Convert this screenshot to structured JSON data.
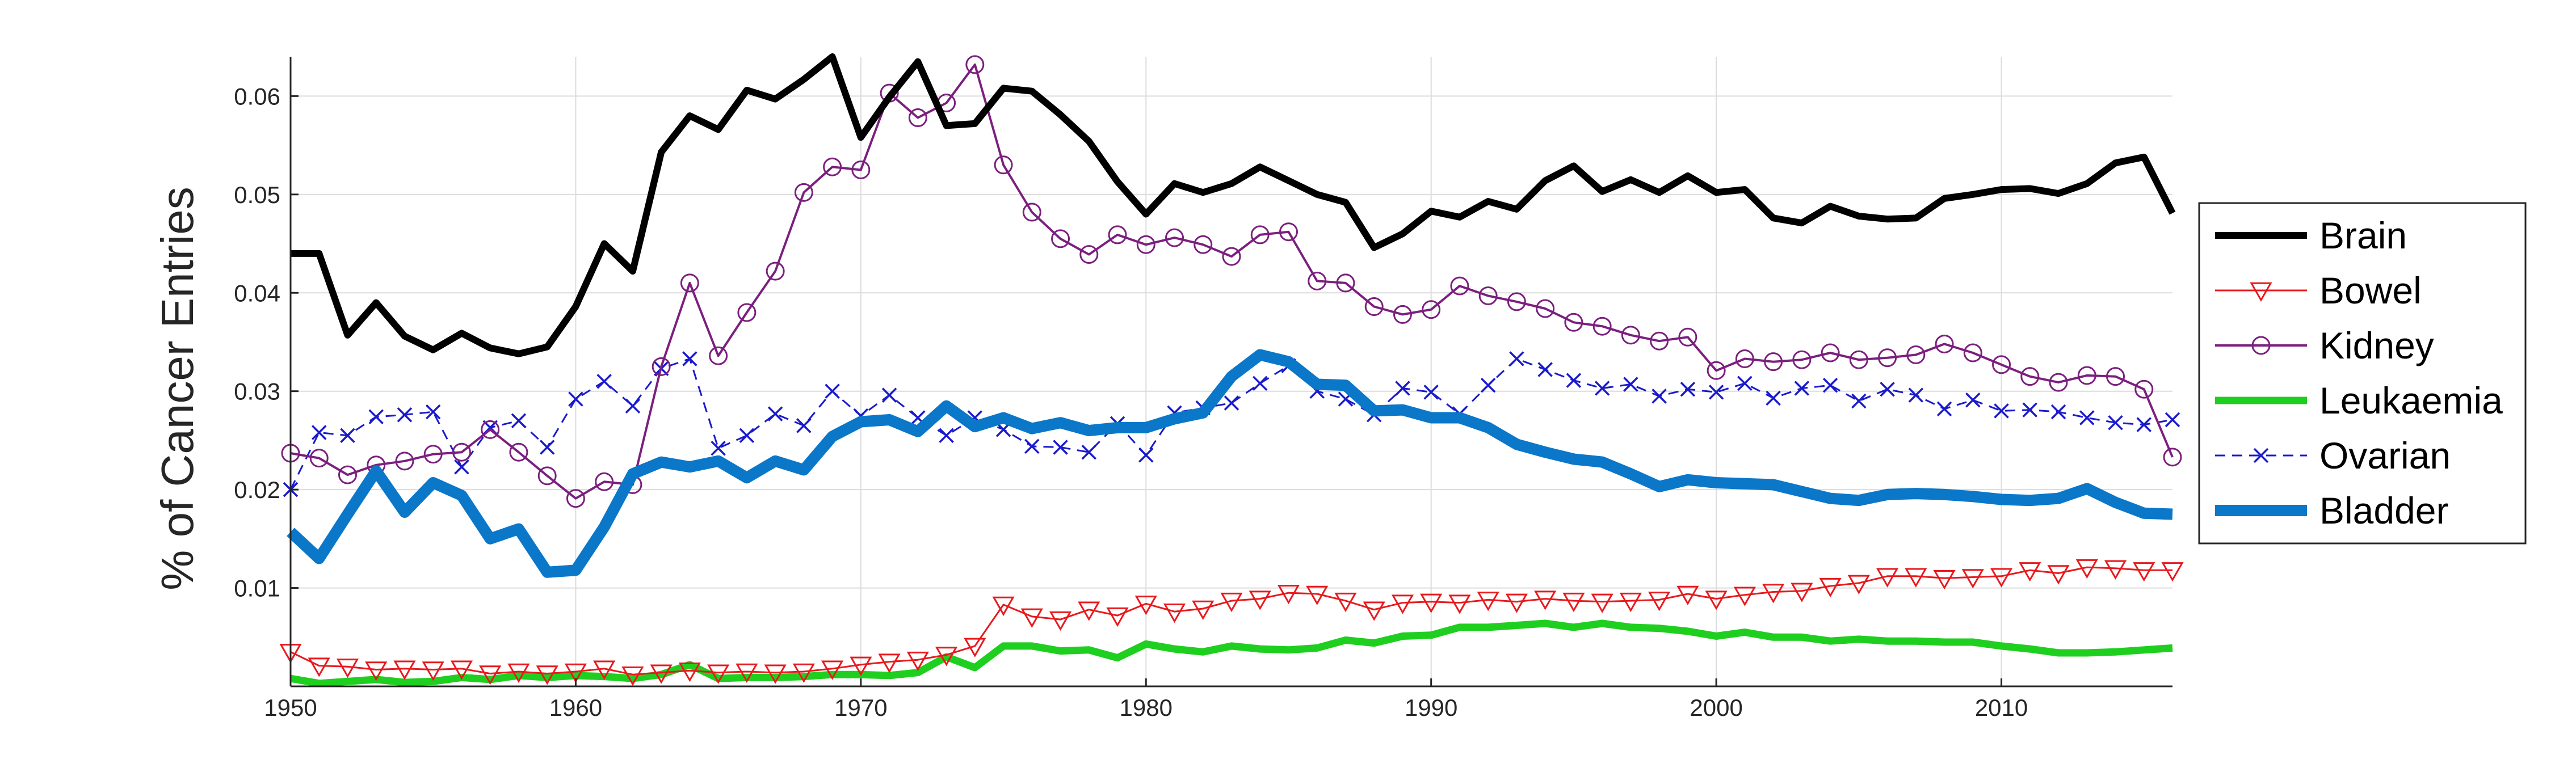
{
  "chart_data": {
    "type": "line",
    "title": "",
    "xlabel": "",
    "ylabel": "% of Cancer Entries",
    "xlim": [
      1950,
      2016
    ],
    "ylim": [
      0,
      0.064
    ],
    "xticks": [
      1950,
      1960,
      1970,
      1980,
      1990,
      2000,
      2010
    ],
    "xtick_labels": [
      "1950",
      "1960",
      "1970",
      "1980",
      "1990",
      "2000",
      "2010"
    ],
    "yticks": [
      0.01,
      0.02,
      0.03,
      0.04,
      0.05,
      0.06
    ],
    "ytick_labels": [
      "0.01",
      "0.02",
      "0.03",
      "0.04",
      "0.05",
      "0.06"
    ],
    "grid": true,
    "legend_position": "right",
    "x": [
      1950,
      1951,
      1952,
      1953,
      1954,
      1955,
      1956,
      1957,
      1958,
      1959,
      1960,
      1961,
      1962,
      1963,
      1964,
      1965,
      1966,
      1967,
      1968,
      1969,
      1970,
      1971,
      1972,
      1973,
      1974,
      1975,
      1976,
      1977,
      1978,
      1979,
      1980,
      1981,
      1982,
      1983,
      1984,
      1985,
      1986,
      1987,
      1988,
      1989,
      1990,
      1991,
      1992,
      1993,
      1994,
      1995,
      1996,
      1997,
      1998,
      1999,
      2000,
      2001,
      2002,
      2003,
      2004,
      2005,
      2006,
      2007,
      2008,
      2009,
      2010,
      2011,
      2012,
      2013,
      2014,
      2015,
      2016
    ],
    "series": [
      {
        "name": "Brain",
        "color": "#000000",
        "style": "solid",
        "marker": "none",
        "width": 12,
        "values": [
          0.044,
          0.044,
          0.0357,
          0.039,
          0.0356,
          0.0342,
          0.0359,
          0.0344,
          0.0338,
          0.0345,
          0.0386,
          0.045,
          0.0422,
          0.0543,
          0.058,
          0.0566,
          0.0606,
          0.0597,
          0.0617,
          0.064,
          0.0558,
          0.0599,
          0.0635,
          0.057,
          0.0572,
          0.0608,
          0.0605,
          0.0581,
          0.0554,
          0.0513,
          0.048,
          0.0511,
          0.0502,
          0.0511,
          0.0528,
          0.0514,
          0.05,
          0.0492,
          0.0446,
          0.046,
          0.0483,
          0.0477,
          0.0493,
          0.0485,
          0.0514,
          0.0529,
          0.0503,
          0.0515,
          0.0502,
          0.0519,
          0.0502,
          0.0505,
          0.0476,
          0.0471,
          0.0488,
          0.0478,
          0.0475,
          0.0476,
          0.0496,
          0.05,
          0.0505,
          0.0506,
          0.0501,
          0.0511,
          0.0532,
          0.0538,
          0.0481
        ]
      },
      {
        "name": "Bowel",
        "color": "#e8191d",
        "style": "solid",
        "marker": "triangle-down",
        "width": 3,
        "values": [
          0.0035,
          0.0021,
          0.002,
          0.0017,
          0.0018,
          0.0017,
          0.0018,
          0.0013,
          0.0015,
          0.0013,
          0.0015,
          0.0018,
          0.0012,
          0.0014,
          0.0016,
          0.0014,
          0.0015,
          0.0014,
          0.0015,
          0.0018,
          0.0022,
          0.0025,
          0.0027,
          0.0032,
          0.0041,
          0.0083,
          0.0071,
          0.0068,
          0.0078,
          0.0072,
          0.0084,
          0.0076,
          0.0079,
          0.0087,
          0.0089,
          0.0095,
          0.0094,
          0.0087,
          0.0078,
          0.0085,
          0.0086,
          0.0085,
          0.0088,
          0.0086,
          0.0089,
          0.0087,
          0.0086,
          0.0087,
          0.0088,
          0.0094,
          0.0089,
          0.0093,
          0.0096,
          0.0097,
          0.0102,
          0.0105,
          0.0112,
          0.0112,
          0.011,
          0.0111,
          0.0112,
          0.0118,
          0.0115,
          0.0121,
          0.012,
          0.0118,
          0.0118
        ]
      },
      {
        "name": "Kidney",
        "color": "#7b1f7e",
        "style": "solid",
        "marker": "circle",
        "width": 4,
        "values": [
          0.0237,
          0.0232,
          0.0215,
          0.0225,
          0.0229,
          0.0236,
          0.0238,
          0.0261,
          0.0238,
          0.0214,
          0.0191,
          0.0208,
          0.0205,
          0.0325,
          0.041,
          0.0336,
          0.038,
          0.0422,
          0.0502,
          0.0528,
          0.0525,
          0.0603,
          0.0578,
          0.0593,
          0.0632,
          0.053,
          0.0482,
          0.0455,
          0.0439,
          0.0459,
          0.0449,
          0.0456,
          0.0449,
          0.0437,
          0.0459,
          0.0462,
          0.0412,
          0.041,
          0.0386,
          0.0378,
          0.0383,
          0.0407,
          0.0397,
          0.0391,
          0.0384,
          0.037,
          0.0366,
          0.0357,
          0.0351,
          0.0355,
          0.0321,
          0.0333,
          0.033,
          0.0332,
          0.0339,
          0.0332,
          0.0334,
          0.0337,
          0.0348,
          0.0339,
          0.0327,
          0.0315,
          0.0309,
          0.0316,
          0.0315,
          0.0302,
          0.0233
        ]
      },
      {
        "name": "Leukaemia",
        "color": "#1fcf1f",
        "style": "solid",
        "marker": "none",
        "width": 13,
        "values": [
          0.0008,
          0.0003,
          0.0005,
          0.0007,
          0.0004,
          0.0005,
          0.0009,
          0.0007,
          0.0011,
          0.0009,
          0.0011,
          0.001,
          0.0008,
          0.0012,
          0.0022,
          0.0008,
          0.0009,
          0.0009,
          0.001,
          0.0012,
          0.0012,
          0.0011,
          0.0014,
          0.003,
          0.0019,
          0.0041,
          0.0041,
          0.0036,
          0.0037,
          0.0029,
          0.0043,
          0.0038,
          0.0035,
          0.0041,
          0.0038,
          0.0037,
          0.0039,
          0.0047,
          0.0044,
          0.0051,
          0.0052,
          0.006,
          0.006,
          0.0062,
          0.0064,
          0.006,
          0.0064,
          0.006,
          0.0059,
          0.0056,
          0.0051,
          0.0055,
          0.005,
          0.005,
          0.0046,
          0.0048,
          0.0046,
          0.0046,
          0.0045,
          0.0045,
          0.0041,
          0.0038,
          0.0034,
          0.0034,
          0.0035,
          0.0037,
          0.0039
        ]
      },
      {
        "name": "Ovarian",
        "color": "#1a1acc",
        "style": "dashed",
        "marker": "x",
        "width": 3,
        "values": [
          0.02,
          0.0258,
          0.0255,
          0.0274,
          0.0276,
          0.0279,
          0.0223,
          0.0263,
          0.027,
          0.0243,
          0.0292,
          0.031,
          0.0285,
          0.0323,
          0.0333,
          0.0242,
          0.0255,
          0.0277,
          0.0265,
          0.03,
          0.0275,
          0.0296,
          0.0273,
          0.0255,
          0.0273,
          0.0261,
          0.0244,
          0.0243,
          0.0238,
          0.0267,
          0.0235,
          0.0278,
          0.0283,
          0.0288,
          0.0308,
          0.0326,
          0.03,
          0.0292,
          0.0276,
          0.0303,
          0.0299,
          0.0277,
          0.0306,
          0.0333,
          0.0322,
          0.0311,
          0.0303,
          0.0307,
          0.0295,
          0.0302,
          0.0299,
          0.0308,
          0.0293,
          0.0303,
          0.0306,
          0.029,
          0.0302,
          0.0296,
          0.0282,
          0.0291,
          0.028,
          0.0281,
          0.0279,
          0.0273,
          0.0268,
          0.0266,
          0.0271
        ]
      },
      {
        "name": "Bladder",
        "color": "#0a77c9",
        "style": "solid",
        "marker": "none",
        "width": 20,
        "values": [
          0.0157,
          0.013,
          0.0175,
          0.0219,
          0.0177,
          0.0207,
          0.0194,
          0.015,
          0.016,
          0.0116,
          0.0118,
          0.0162,
          0.0216,
          0.0228,
          0.0223,
          0.0229,
          0.0212,
          0.0229,
          0.022,
          0.0254,
          0.0269,
          0.0271,
          0.0259,
          0.0285,
          0.0264,
          0.0273,
          0.0262,
          0.0268,
          0.026,
          0.0263,
          0.0263,
          0.0272,
          0.0278,
          0.0315,
          0.0337,
          0.033,
          0.0307,
          0.0306,
          0.028,
          0.0281,
          0.0273,
          0.0273,
          0.0263,
          0.0246,
          0.0238,
          0.0231,
          0.0228,
          0.0216,
          0.0203,
          0.021,
          0.0207,
          0.0206,
          0.0205,
          0.0198,
          0.0191,
          0.0189,
          0.0195,
          0.0196,
          0.0195,
          0.0193,
          0.019,
          0.0189,
          0.0191,
          0.0201,
          0.0187,
          0.0176,
          0.0175
        ]
      }
    ]
  }
}
